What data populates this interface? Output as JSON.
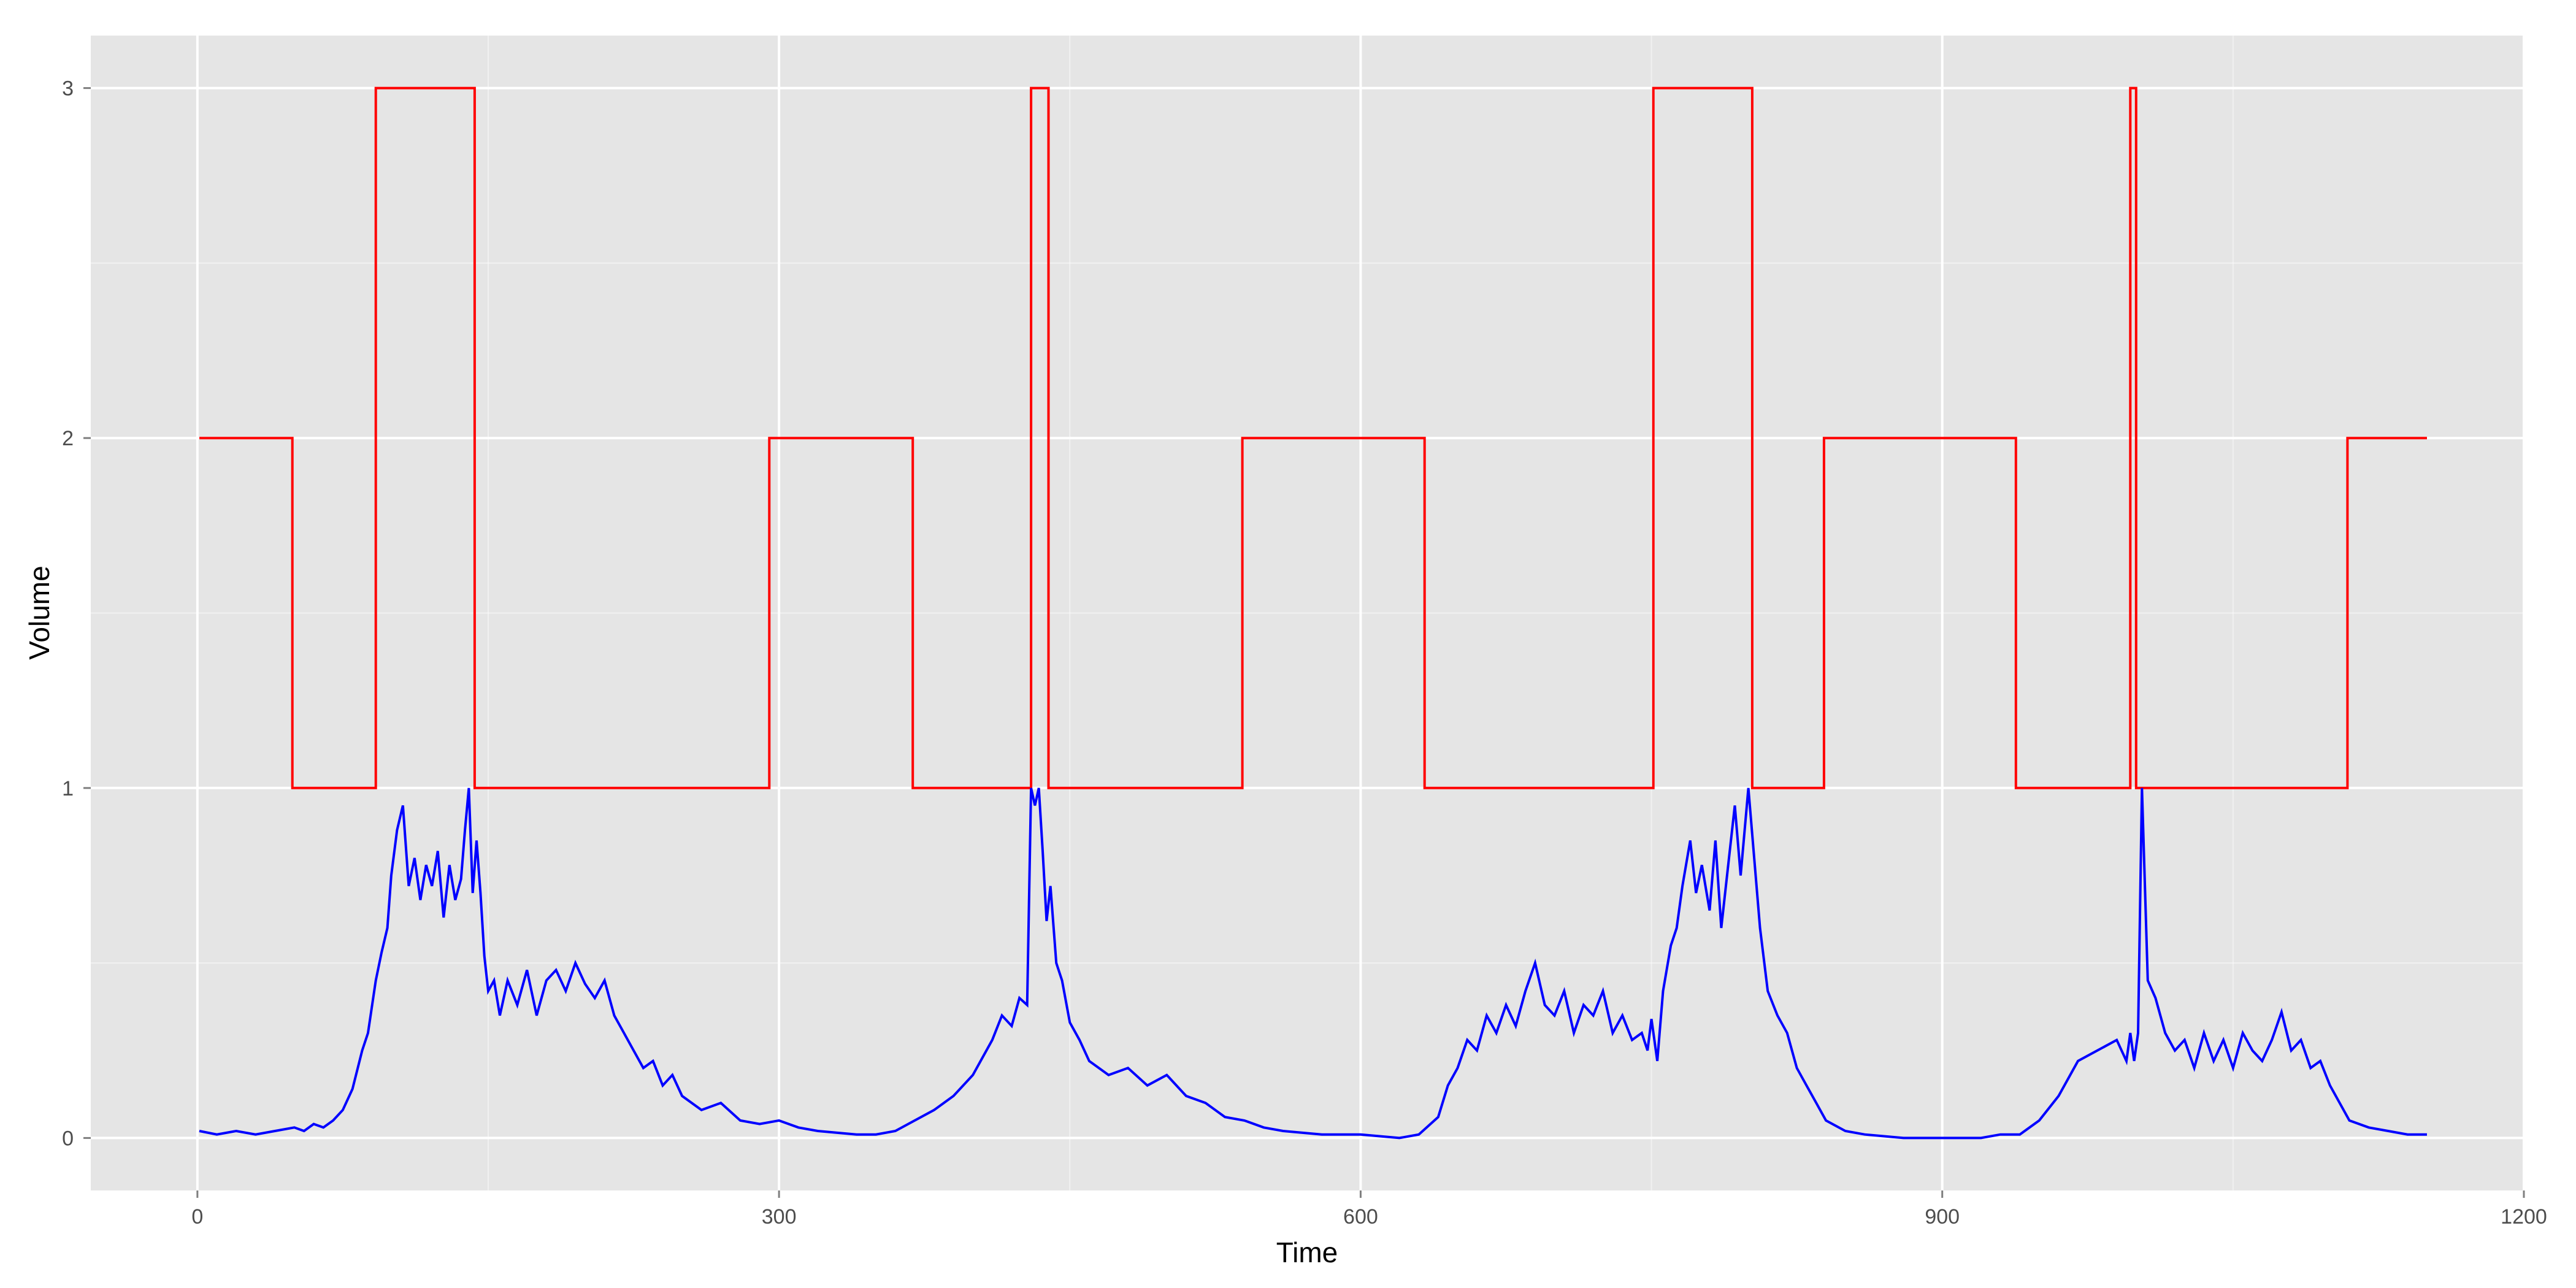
{
  "chart_data": {
    "type": "line",
    "title": "",
    "xlabel": "Time",
    "ylabel": "Volume",
    "xlim": [
      -55,
      1200
    ],
    "ylim": [
      -0.15,
      3.15
    ],
    "xticks": [
      0,
      300,
      600,
      900,
      1200
    ],
    "yticks": [
      0,
      1,
      2,
      3
    ],
    "grid": true,
    "legend": "none",
    "colors": {
      "panel": "#E5E5E5",
      "grid": "#FFFFFF",
      "tick_text": "#4D4D4D"
    },
    "series": [
      {
        "style": "step",
        "color": "#FF0000",
        "segments": [
          {
            "start": 1,
            "end": 49,
            "value": 2
          },
          {
            "start": 49,
            "end": 92,
            "value": 1
          },
          {
            "start": 92,
            "end": 143,
            "value": 3
          },
          {
            "start": 143,
            "end": 295,
            "value": 1
          },
          {
            "start": 295,
            "end": 369,
            "value": 2
          },
          {
            "start": 369,
            "end": 430,
            "value": 1
          },
          {
            "start": 430,
            "end": 439,
            "value": 3
          },
          {
            "start": 439,
            "end": 539,
            "value": 1
          },
          {
            "start": 539,
            "end": 633,
            "value": 2
          },
          {
            "start": 633,
            "end": 751,
            "value": 1
          },
          {
            "start": 751,
            "end": 802,
            "value": 3
          },
          {
            "start": 802,
            "end": 839,
            "value": 1
          },
          {
            "start": 839,
            "end": 938,
            "value": 2
          },
          {
            "start": 938,
            "end": 997,
            "value": 1
          },
          {
            "start": 997,
            "end": 1000,
            "value": 3
          },
          {
            "start": 1000,
            "end": 1109,
            "value": 1
          },
          {
            "start": 1109,
            "end": 1150,
            "value": 2
          }
        ]
      },
      {
        "style": "line",
        "color": "#0000FF",
        "x": [
          1,
          10,
          20,
          30,
          40,
          50,
          55,
          60,
          65,
          70,
          75,
          80,
          85,
          88,
          92,
          95,
          98,
          100,
          103,
          106,
          109,
          112,
          115,
          118,
          121,
          124,
          127,
          130,
          133,
          136,
          138,
          140,
          142,
          144,
          146,
          148,
          150,
          153,
          156,
          160,
          165,
          170,
          175,
          180,
          185,
          190,
          195,
          200,
          205,
          210,
          215,
          220,
          225,
          230,
          235,
          240,
          245,
          250,
          260,
          270,
          280,
          290,
          300,
          310,
          320,
          340,
          350,
          360,
          370,
          380,
          390,
          400,
          410,
          415,
          420,
          424,
          428,
          430,
          432,
          434,
          436,
          438,
          440,
          443,
          446,
          450,
          455,
          460,
          470,
          480,
          490,
          500,
          510,
          520,
          530,
          540,
          550,
          560,
          580,
          600,
          620,
          630,
          640,
          645,
          650,
          655,
          660,
          665,
          670,
          675,
          680,
          685,
          690,
          695,
          700,
          705,
          710,
          715,
          720,
          725,
          730,
          735,
          740,
          745,
          748,
          750,
          753,
          756,
          760,
          763,
          766,
          770,
          773,
          776,
          780,
          783,
          786,
          790,
          793,
          796,
          800,
          803,
          806,
          810,
          815,
          820,
          825,
          830,
          835,
          840,
          850,
          860,
          880,
          900,
          920,
          930,
          940,
          950,
          960,
          970,
          980,
          990,
          995,
          997,
          999,
          1001,
          1003,
          1006,
          1010,
          1015,
          1020,
          1025,
          1030,
          1035,
          1040,
          1045,
          1050,
          1055,
          1060,
          1065,
          1070,
          1075,
          1080,
          1085,
          1090,
          1095,
          1100,
          1105,
          1110,
          1120,
          1130,
          1140,
          1150
        ],
        "y": [
          0.02,
          0.01,
          0.02,
          0.01,
          0.02,
          0.03,
          0.02,
          0.04,
          0.03,
          0.05,
          0.08,
          0.14,
          0.25,
          0.3,
          0.45,
          0.53,
          0.6,
          0.75,
          0.88,
          0.95,
          0.72,
          0.8,
          0.68,
          0.78,
          0.72,
          0.82,
          0.63,
          0.78,
          0.68,
          0.74,
          0.88,
          1.0,
          0.7,
          0.85,
          0.7,
          0.52,
          0.42,
          0.45,
          0.35,
          0.45,
          0.38,
          0.48,
          0.35,
          0.45,
          0.48,
          0.42,
          0.5,
          0.44,
          0.4,
          0.45,
          0.35,
          0.3,
          0.25,
          0.2,
          0.22,
          0.15,
          0.18,
          0.12,
          0.08,
          0.1,
          0.05,
          0.04,
          0.05,
          0.03,
          0.02,
          0.01,
          0.01,
          0.02,
          0.05,
          0.08,
          0.12,
          0.18,
          0.28,
          0.35,
          0.32,
          0.4,
          0.38,
          1.0,
          0.95,
          1.0,
          0.82,
          0.62,
          0.72,
          0.5,
          0.45,
          0.33,
          0.28,
          0.22,
          0.18,
          0.2,
          0.15,
          0.18,
          0.12,
          0.1,
          0.06,
          0.05,
          0.03,
          0.02,
          0.01,
          0.01,
          0.0,
          0.01,
          0.06,
          0.15,
          0.2,
          0.28,
          0.25,
          0.35,
          0.3,
          0.38,
          0.32,
          0.42,
          0.5,
          0.38,
          0.35,
          0.42,
          0.3,
          0.38,
          0.35,
          0.42,
          0.3,
          0.35,
          0.28,
          0.3,
          0.25,
          0.34,
          0.22,
          0.42,
          0.55,
          0.6,
          0.72,
          0.85,
          0.7,
          0.78,
          0.65,
          0.85,
          0.6,
          0.8,
          0.95,
          0.75,
          1.0,
          0.8,
          0.6,
          0.42,
          0.35,
          0.3,
          0.2,
          0.15,
          0.1,
          0.05,
          0.02,
          0.01,
          0.0,
          0.0,
          0.0,
          0.01,
          0.01,
          0.05,
          0.12,
          0.22,
          0.25,
          0.28,
          0.22,
          0.3,
          0.22,
          0.3,
          1.0,
          0.45,
          0.4,
          0.3,
          0.25,
          0.28,
          0.2,
          0.3,
          0.22,
          0.28,
          0.2,
          0.3,
          0.25,
          0.22,
          0.28,
          0.36,
          0.25,
          0.28,
          0.2,
          0.22,
          0.15,
          0.1,
          0.05,
          0.03,
          0.02,
          0.01,
          0.01
        ]
      }
    ]
  }
}
